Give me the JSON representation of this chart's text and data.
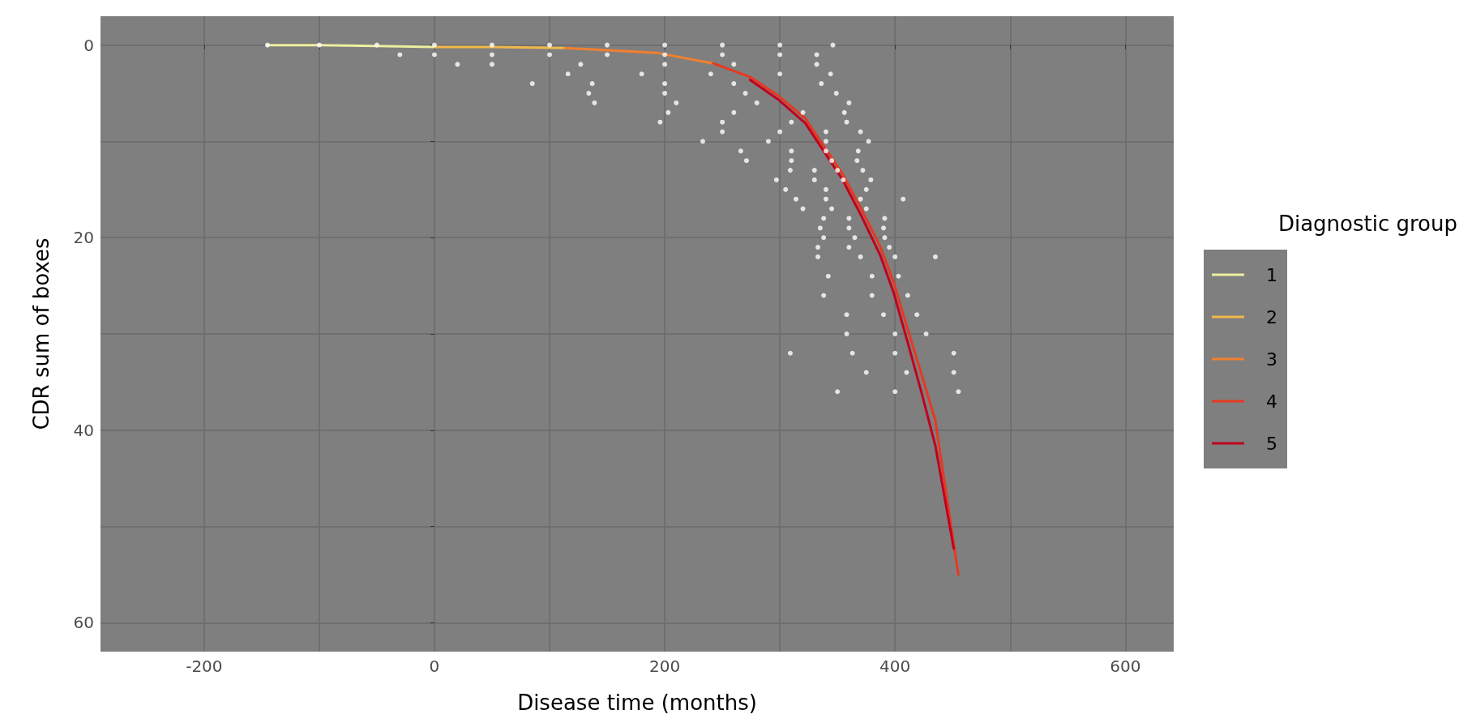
{
  "chart_data": {
    "type": "line",
    "xlabel": "Disease time (months)",
    "ylabel": "CDR sum of boxes",
    "legend_title": "Diagnostic group",
    "legend": "right",
    "xlim": [
      -290,
      642
    ],
    "xticks": [
      -200,
      {
        "value": -100,
        "label": null
      },
      0,
      {
        "value": 100,
        "label": null
      },
      200,
      {
        "value": 300,
        "label": null
      },
      400,
      {
        "value": 500,
        "label": null
      },
      600
    ],
    "ylim": [
      63,
      -3
    ],
    "yticks": [
      0,
      {
        "value": 10,
        "label": null
      },
      20,
      {
        "value": 30,
        "label": null
      },
      40,
      {
        "value": 50,
        "label": null
      },
      60
    ],
    "grid": true,
    "marker": "none",
    "line_style": "solid",
    "series": [
      {
        "type": "scatter",
        "color": "#ffffff",
        "x": [
          -145,
          -100,
          -50,
          0,
          50,
          100,
          150,
          200,
          250,
          300,
          346,
          -30,
          0,
          50,
          100,
          150,
          200,
          250,
          300,
          332,
          20,
          50,
          127,
          200,
          260,
          332,
          116,
          180,
          240,
          300,
          344,
          85,
          137,
          200,
          260,
          336,
          134,
          200,
          270,
          349,
          139,
          210,
          280,
          360,
          203,
          260,
          320,
          356,
          196,
          250,
          310,
          358,
          250,
          300,
          340,
          370,
          233,
          290,
          340,
          377,
          266,
          310,
          340,
          368,
          271,
          310,
          345,
          367,
          309,
          330,
          350,
          372,
          297,
          330,
          355,
          379,
          305,
          340,
          375,
          314,
          340,
          370,
          407,
          320,
          345,
          375,
          338,
          360,
          391,
          335,
          360,
          390,
          338,
          365,
          391,
          333,
          360,
          395,
          333,
          370,
          400,
          435,
          342,
          380,
          403,
          338,
          380,
          411,
          358,
          390,
          419,
          358,
          400,
          427,
          309,
          363,
          400,
          451,
          375,
          410,
          451,
          350,
          400,
          455
        ],
        "values": [
          0,
          0,
          0,
          0,
          0,
          0,
          0,
          0,
          0,
          0,
          0,
          1,
          1,
          1,
          1,
          1,
          1,
          1,
          1,
          1,
          2,
          2,
          2,
          2,
          2,
          2,
          3,
          3,
          3,
          3,
          3,
          4,
          4,
          4,
          4,
          4,
          5,
          5,
          5,
          5,
          6,
          6,
          6,
          6,
          7,
          7,
          7,
          7,
          8,
          8,
          8,
          8,
          9,
          9,
          9,
          9,
          10,
          10,
          10,
          10,
          11,
          11,
          11,
          11,
          12,
          12,
          12,
          12,
          13,
          13,
          13,
          13,
          14,
          14,
          14,
          14,
          15,
          15,
          15,
          16,
          16,
          16,
          16,
          17,
          17,
          17,
          18,
          18,
          18,
          19,
          19,
          19,
          20,
          20,
          20,
          21,
          21,
          21,
          22,
          22,
          22,
          22,
          24,
          24,
          24,
          26,
          26,
          26,
          28,
          28,
          28,
          30,
          30,
          30,
          32,
          32,
          32,
          32,
          34,
          34,
          34,
          36,
          36,
          36
        ]
      },
      {
        "name": "1",
        "color": "#eeeea0",
        "x": [
          -145,
          -100,
          -50,
          0
        ],
        "values": [
          0,
          0,
          0.1,
          0.2
        ]
      },
      {
        "name": "2",
        "color": "#f0b848",
        "x": [
          0,
          50,
          113
        ],
        "values": [
          0.2,
          0.2,
          0.3
        ]
      },
      {
        "name": "3",
        "color": "#f08030",
        "x": [
          113,
          193,
          242
        ],
        "values": [
          0.3,
          0.8,
          1.9
        ]
      },
      {
        "name": "4",
        "color": "#e83820",
        "x": [
          242,
          274,
          298,
          322,
          338,
          354,
          371,
          387,
          399,
          411,
          423,
          435,
          455
        ],
        "values": [
          1.9,
          3.3,
          5.2,
          7.6,
          10.5,
          13.3,
          17.1,
          20.9,
          24.7,
          29.5,
          34.2,
          39,
          55
        ]
      },
      {
        "name": "5",
        "color": "#c00020",
        "x": [
          274,
          298,
          322,
          338,
          354,
          371,
          387,
          399,
          411,
          423,
          435,
          451
        ],
        "values": [
          3.6,
          5.6,
          8.1,
          11,
          13.9,
          17.8,
          21.8,
          25.8,
          30.9,
          36.1,
          41.6,
          52.3
        ]
      }
    ]
  }
}
